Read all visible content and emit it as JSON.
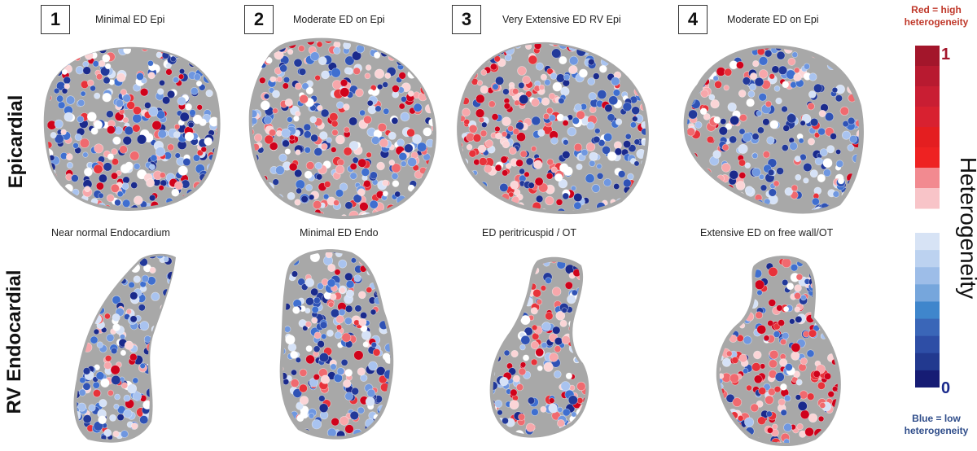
{
  "panels": [
    {
      "number": "1",
      "title": "Minimal ED Epi",
      "endo_title": "Near normal Endocardium"
    },
    {
      "number": "2",
      "title": "Moderate ED on Epi",
      "endo_title": "Minimal ED Endo"
    },
    {
      "number": "3",
      "title": "Very Extensive ED RV Epi",
      "endo_title": "ED peritricuspid / OT"
    },
    {
      "number": "4",
      "title": "Moderate ED on Epi",
      "endo_title": "Extensive ED on free wall/OT"
    }
  ],
  "row_labels": {
    "epicardial": "Epicardial",
    "endocardial": "RV Endocardial"
  },
  "colorbar": {
    "title": "Heterogeneity",
    "max_label": "1",
    "min_label": "0",
    "top_caption_1": "Red = high",
    "top_caption_2": "heterogeneity",
    "bottom_caption_1": "Blue  = low",
    "bottom_caption_2": "heterogeneity",
    "red_colors": [
      "#a3162b",
      "#b81a30",
      "#c91e33",
      "#d82130",
      "#e41e20",
      "#ee2222",
      "#f28a90",
      "#f8c4c8"
    ],
    "blue_colors": [
      "#d7e3f5",
      "#bcd2f0",
      "#9dbde8",
      "#76a6dc",
      "#3f86cc",
      "#3a66b8",
      "#2e4ea6",
      "#22398f",
      "#161c74"
    ]
  },
  "colors": {
    "tissue_gray": "#a8a8a8",
    "high_red": "#d0021b",
    "low_blue": "#1a2a8c",
    "caption_red": "#c0392b",
    "caption_blue": "#2f4d8a"
  }
}
